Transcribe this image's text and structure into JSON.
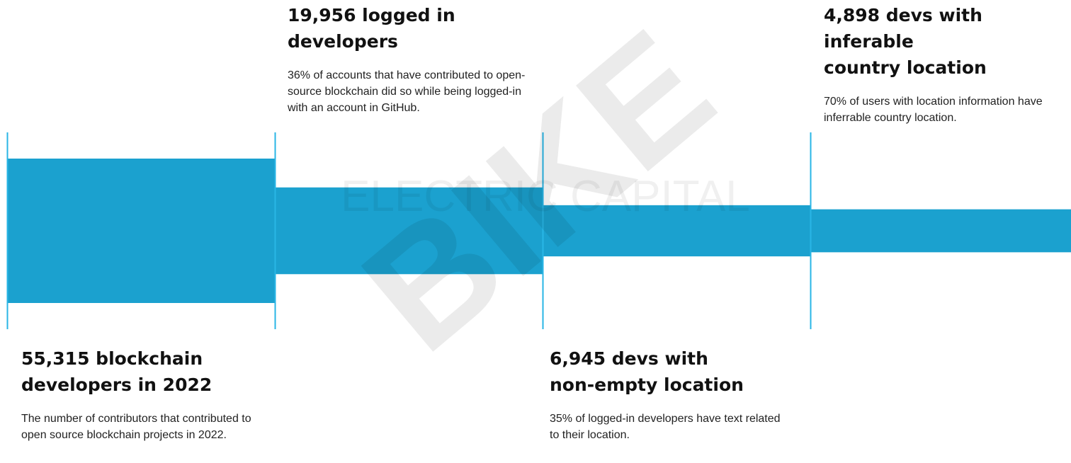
{
  "chart_data": {
    "type": "bar",
    "orientation": "funnel",
    "categories": [
      "55,315 blockchain developers in 2022",
      "19,956 logged in developers",
      "6,945 devs with non-empty location",
      "4,898 devs with inferable country location"
    ],
    "values": [
      55315,
      19956,
      6945,
      4898
    ],
    "stages": [
      {
        "value": 55315,
        "title": "55,315 blockchain\ndevelopers in 2022",
        "description": "The number of contributors that contributed to open source blockchain projects in 2022.",
        "label_position": "below"
      },
      {
        "value": 19956,
        "title": "19,956 logged in\ndevelopers",
        "description": "36% of accounts that have contributed to open-source blockchain did so while being logged-in with an account in GitHub.",
        "label_position": "above"
      },
      {
        "value": 6945,
        "title": "6,945 devs with\nnon-empty location",
        "description": "35% of logged-in developers have text related to their location.",
        "label_position": "below"
      },
      {
        "value": 4898,
        "title": "4,898 devs with inferable\ncountry location",
        "description": "70% of users with location information have inferrable country location.",
        "label_position": "above"
      }
    ],
    "title": "",
    "xlabel": "",
    "ylabel": "",
    "grid": false,
    "colors": {
      "bar": "#1ba1cf",
      "divider": "#29b6e6"
    }
  },
  "watermarks": {
    "brand": "ELECTRIC CAPITAL",
    "stamp": "BIKE"
  }
}
